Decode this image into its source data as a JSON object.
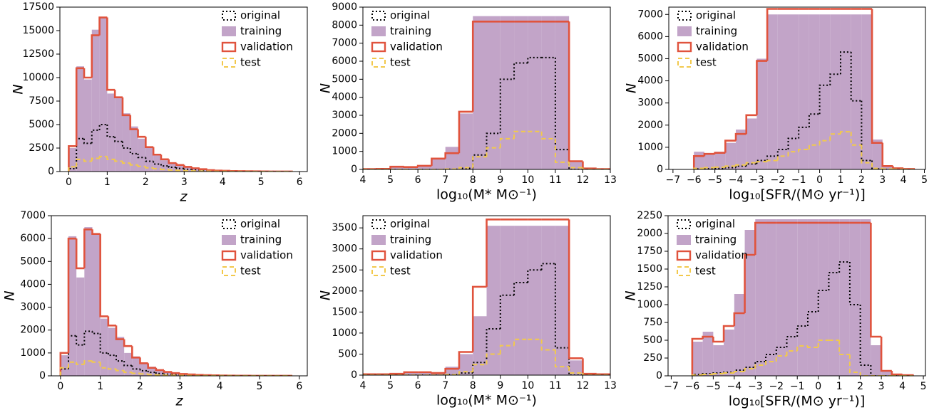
{
  "chart_data": [
    {
      "type": "histogram",
      "xlabel": "z",
      "ylabel": "N",
      "legend": "upper right",
      "xlim": [
        -0.23,
        6.2
      ],
      "ylim": [
        0,
        17500
      ],
      "xticks": [
        0,
        1,
        2,
        3,
        4,
        5,
        6
      ],
      "yticks": [
        0,
        2500,
        5000,
        7500,
        10000,
        12500,
        15000,
        17500
      ],
      "bins": [
        0,
        0.2,
        0.4,
        0.6,
        0.8,
        1.0,
        1.2,
        1.4,
        1.6,
        1.8,
        2.0,
        2.2,
        2.4,
        2.6,
        2.8,
        3.0,
        3.2,
        3.4,
        3.6,
        3.8,
        4.0,
        4.2,
        4.4,
        4.6,
        4.8,
        5.0,
        5.2,
        5.4,
        5.6,
        5.8
      ],
      "series": [
        {
          "name": "original",
          "color": "#000000",
          "style": "dotted",
          "values": [
            300,
            3500,
            3000,
            4400,
            5000,
            3700,
            3200,
            2500,
            1900,
            1500,
            1100,
            800,
            600,
            450,
            330,
            240,
            170,
            120,
            80,
            55,
            40,
            28,
            20,
            14,
            10,
            7,
            5,
            3,
            2
          ]
        },
        {
          "name": "training",
          "color": "#c2a4c8",
          "style": "filled",
          "values": [
            2500,
            11200,
            9800,
            15100,
            16400,
            8300,
            7800,
            6200,
            4800,
            3500,
            2500,
            1700,
            1200,
            900,
            650,
            450,
            330,
            220,
            150,
            100,
            70,
            50,
            35,
            25,
            18,
            12,
            8,
            5,
            3
          ]
        },
        {
          "name": "validation",
          "color": "#e0533d",
          "style": "solid",
          "values": [
            2700,
            11000,
            10000,
            14500,
            16400,
            8700,
            7900,
            6000,
            4500,
            3700,
            2600,
            1800,
            1300,
            900,
            700,
            500,
            350,
            250,
            150,
            100,
            80,
            50,
            40,
            30,
            20,
            15,
            10,
            5,
            5
          ]
        },
        {
          "name": "test",
          "color": "#f2c94c",
          "style": "dashed",
          "values": [
            500,
            1300,
            1100,
            1400,
            1600,
            1300,
            1100,
            900,
            700,
            550,
            400,
            300,
            220,
            160,
            120,
            90,
            65,
            45,
            30,
            20,
            15,
            10,
            8,
            6,
            4,
            3,
            2,
            1,
            1
          ]
        }
      ]
    },
    {
      "type": "histogram",
      "xlabel": "log₁₀(M* M⊙⁻¹)",
      "ylabel": "N",
      "legend": "upper left",
      "xlim": [
        4,
        13
      ],
      "ylim": [
        0,
        9000
      ],
      "xticks": [
        4,
        5,
        6,
        7,
        8,
        9,
        10,
        11,
        12,
        13
      ],
      "yticks": [
        0,
        1000,
        2000,
        3000,
        4000,
        5000,
        6000,
        7000,
        8000,
        9000
      ],
      "bins": [
        4,
        4.5,
        5,
        5.5,
        6,
        6.5,
        7,
        7.5,
        8,
        8.5,
        9,
        9.5,
        10,
        10.5,
        11,
        11.5,
        12,
        12.5,
        13
      ],
      "series": [
        {
          "name": "original",
          "color": "#000000",
          "style": "dotted",
          "values": [
            0,
            0,
            0,
            0,
            0,
            0,
            10,
            60,
            800,
            2000,
            5000,
            5900,
            6200,
            6200,
            1100,
            0,
            0,
            0
          ]
        },
        {
          "name": "training",
          "color": "#c2a4c8",
          "style": "filled",
          "values": [
            20,
            30,
            150,
            130,
            200,
            600,
            1250,
            3100,
            8500,
            8500,
            8500,
            8500,
            8500,
            8500,
            8500,
            400,
            50,
            20
          ]
        },
        {
          "name": "validation",
          "color": "#e0533d",
          "style": "solid",
          "values": [
            20,
            30,
            150,
            130,
            200,
            600,
            900,
            3200,
            8200,
            8200,
            8200,
            8200,
            8200,
            8200,
            8200,
            450,
            50,
            20
          ]
        },
        {
          "name": "test",
          "color": "#f2c94c",
          "style": "dashed",
          "values": [
            0,
            0,
            0,
            0,
            0,
            0,
            20,
            100,
            700,
            1200,
            1700,
            2100,
            2100,
            1700,
            400,
            100,
            0,
            0
          ]
        }
      ]
    },
    {
      "type": "histogram",
      "xlabel": "log₁₀[SFR/(M⊙ yr⁻¹)]",
      "ylabel": "N",
      "legend": "upper left",
      "xlim": [
        -7.2,
        5.05
      ],
      "ylim": [
        0,
        7330
      ],
      "xticks": [
        {
          "value": -7,
          "label": "−7"
        },
        {
          "value": -6,
          "label": "−6"
        },
        {
          "value": -5,
          "label": "−5"
        },
        {
          "value": -4,
          "label": "−4"
        },
        {
          "value": -3,
          "label": "−3"
        },
        {
          "value": -2,
          "label": "−2"
        },
        {
          "value": -1,
          "label": "−1"
        },
        0,
        1,
        2,
        3,
        4,
        5
      ],
      "yticks": [
        0,
        1000,
        2000,
        3000,
        4000,
        5000,
        6000,
        7000
      ],
      "bins": [
        -6,
        -5.5,
        -5,
        -4.5,
        -4,
        -3.5,
        -3,
        -2.5,
        -2,
        -1.5,
        -1,
        -0.5,
        0,
        0.5,
        1,
        1.5,
        2,
        2.5,
        3,
        3.5,
        4,
        4.5
      ],
      "series": [
        {
          "name": "original",
          "color": "#000000",
          "style": "dotted",
          "values": [
            20,
            30,
            40,
            80,
            150,
            250,
            400,
            600,
            900,
            1400,
            1900,
            2500,
            3800,
            4300,
            5300,
            3100,
            400,
            20,
            0,
            0,
            0
          ]
        },
        {
          "name": "training",
          "color": "#c2a4c8",
          "style": "filled",
          "values": [
            800,
            700,
            800,
            1200,
            1800,
            2300,
            5000,
            7000,
            7000,
            7000,
            7000,
            7000,
            7000,
            7000,
            7000,
            7000,
            7000,
            1350,
            150,
            50,
            20
          ]
        },
        {
          "name": "validation",
          "color": "#e0533d",
          "style": "solid",
          "values": [
            600,
            700,
            750,
            1300,
            1600,
            2450,
            4900,
            7250,
            7250,
            7250,
            7250,
            7250,
            7250,
            7250,
            7250,
            7250,
            7250,
            1200,
            150,
            50,
            20
          ]
        },
        {
          "name": "test",
          "color": "#f2c94c",
          "style": "dashed",
          "values": [
            50,
            80,
            100,
            150,
            200,
            300,
            350,
            400,
            600,
            800,
            900,
            1100,
            1300,
            1600,
            1700,
            1100,
            300,
            50,
            20,
            10,
            0
          ]
        }
      ]
    },
    {
      "type": "histogram",
      "xlabel": "z",
      "ylabel": "N",
      "legend": "upper right",
      "xlim": [
        -0.23,
        6.2
      ],
      "ylim": [
        0,
        7000
      ],
      "xticks": [
        0,
        1,
        2,
        3,
        4,
        5,
        6
      ],
      "yticks": [
        0,
        1000,
        2000,
        3000,
        4000,
        5000,
        6000,
        7000
      ],
      "bins": [
        0,
        0.2,
        0.4,
        0.6,
        0.8,
        1.0,
        1.2,
        1.4,
        1.6,
        1.8,
        2.0,
        2.2,
        2.4,
        2.6,
        2.8,
        3.0,
        3.2,
        3.4,
        3.6,
        3.8,
        4.0,
        4.2,
        4.4,
        4.6,
        4.8,
        5.0,
        5.2,
        5.4,
        5.6,
        5.8
      ],
      "series": [
        {
          "name": "original",
          "color": "#000000",
          "style": "dotted",
          "values": [
            300,
            1750,
            1350,
            1950,
            1850,
            1000,
            900,
            650,
            450,
            300,
            220,
            150,
            100,
            70,
            50,
            35,
            25,
            17,
            12,
            8,
            6,
            4,
            3,
            2,
            1,
            1,
            1,
            0,
            0
          ]
        },
        {
          "name": "training",
          "color": "#c2a4c8",
          "style": "filled",
          "values": [
            900,
            6100,
            4300,
            6500,
            6200,
            2500,
            2100,
            1700,
            1000,
            850,
            550,
            400,
            250,
            170,
            120,
            80,
            60,
            40,
            30,
            20,
            15,
            10,
            8,
            6,
            4,
            3,
            2,
            1,
            1
          ]
        },
        {
          "name": "validation",
          "color": "#e0533d",
          "style": "solid",
          "values": [
            1000,
            6000,
            4700,
            6400,
            6200,
            2600,
            2200,
            1600,
            1300,
            800,
            550,
            350,
            250,
            170,
            120,
            80,
            60,
            40,
            30,
            20,
            15,
            10,
            8,
            6,
            4,
            3,
            2,
            1,
            1
          ]
        },
        {
          "name": "test",
          "color": "#f2c94c",
          "style": "dashed",
          "values": [
            350,
            600,
            500,
            650,
            600,
            350,
            300,
            230,
            150,
            110,
            80,
            55,
            40,
            28,
            20,
            14,
            10,
            7,
            5,
            3,
            2,
            2,
            1,
            1,
            1,
            0,
            0,
            0,
            0
          ]
        }
      ]
    },
    {
      "type": "histogram",
      "xlabel": "log₁₀(M* M⊙⁻¹)",
      "ylabel": "N",
      "legend": "upper left",
      "xlim": [
        4,
        13
      ],
      "ylim": [
        0,
        3790
      ],
      "xticks": [
        4,
        5,
        6,
        7,
        8,
        9,
        10,
        11,
        12,
        13
      ],
      "yticks": [
        0,
        500,
        1000,
        1500,
        2000,
        2500,
        3000,
        3500
      ],
      "bins": [
        4,
        4.5,
        5,
        5.5,
        6,
        6.5,
        7,
        7.5,
        8,
        8.5,
        9,
        9.5,
        10,
        10.5,
        11,
        11.5,
        12,
        12.5,
        13
      ],
      "series": [
        {
          "name": "original",
          "color": "#000000",
          "style": "dotted",
          "values": [
            0,
            0,
            0,
            0,
            0,
            0,
            10,
            50,
            300,
            1100,
            1900,
            2200,
            2500,
            2650,
            650,
            0,
            0,
            0
          ]
        },
        {
          "name": "training",
          "color": "#c2a4c8",
          "style": "filled",
          "values": [
            20,
            20,
            30,
            60,
            60,
            50,
            200,
            500,
            1400,
            3550,
            3550,
            3550,
            3550,
            3550,
            3550,
            350,
            30,
            20
          ]
        },
        {
          "name": "validation",
          "color": "#e0533d",
          "style": "solid",
          "values": [
            20,
            20,
            30,
            70,
            70,
            50,
            150,
            550,
            2100,
            3700,
            3700,
            3700,
            3700,
            3700,
            3700,
            400,
            30,
            20
          ]
        },
        {
          "name": "test",
          "color": "#f2c94c",
          "style": "dashed",
          "values": [
            0,
            0,
            0,
            0,
            0,
            0,
            10,
            80,
            250,
            500,
            700,
            850,
            850,
            600,
            200,
            50,
            0,
            0
          ]
        }
      ]
    },
    {
      "type": "histogram",
      "xlabel": "log₁₀[SFR/(M⊙ yr⁻¹)]",
      "ylabel": "N",
      "legend": "upper left",
      "xlim": [
        -7.15,
        5.1
      ],
      "ylim": [
        0,
        2250
      ],
      "xticks": [
        {
          "value": -7,
          "label": "−7"
        },
        {
          "value": -6,
          "label": "−6"
        },
        {
          "value": -5,
          "label": "−5"
        },
        {
          "value": -4,
          "label": "−4"
        },
        {
          "value": -3,
          "label": "−3"
        },
        {
          "value": -2,
          "label": "−2"
        },
        {
          "value": -1,
          "label": "−1"
        },
        0,
        1,
        2,
        3,
        4,
        5
      ],
      "yticks": [
        0,
        250,
        500,
        750,
        1000,
        1250,
        1500,
        1750,
        2000,
        2250
      ],
      "bins": [
        -6,
        -5.5,
        -5,
        -4.5,
        -4,
        -3.5,
        -3,
        -2.5,
        -2,
        -1.5,
        -1,
        -0.5,
        0,
        0.5,
        1,
        1.5,
        2,
        2.5,
        3,
        3.5,
        4,
        4.5
      ],
      "series": [
        {
          "name": "original",
          "color": "#000000",
          "style": "dotted",
          "values": [
            20,
            30,
            40,
            50,
            80,
            120,
            200,
            300,
            400,
            550,
            700,
            900,
            1200,
            1450,
            1600,
            1000,
            150,
            0,
            0,
            0,
            0
          ]
        },
        {
          "name": "training",
          "color": "#c2a4c8",
          "style": "filled",
          "values": [
            480,
            620,
            430,
            650,
            1150,
            2050,
            2200,
            2200,
            2200,
            2200,
            2200,
            2200,
            2200,
            2200,
            2200,
            2200,
            2200,
            430,
            70,
            20,
            10
          ]
        },
        {
          "name": "validation",
          "color": "#e0533d",
          "style": "solid",
          "values": [
            520,
            550,
            480,
            700,
            880,
            1700,
            2150,
            2150,
            2150,
            2150,
            2150,
            2150,
            2150,
            2150,
            2150,
            2150,
            2150,
            550,
            70,
            20,
            10
          ]
        },
        {
          "name": "test",
          "color": "#f2c94c",
          "style": "dashed",
          "values": [
            10,
            20,
            30,
            40,
            60,
            100,
            150,
            200,
            280,
            350,
            420,
            400,
            500,
            500,
            300,
            50,
            0,
            0,
            0,
            0,
            0
          ]
        }
      ]
    }
  ]
}
